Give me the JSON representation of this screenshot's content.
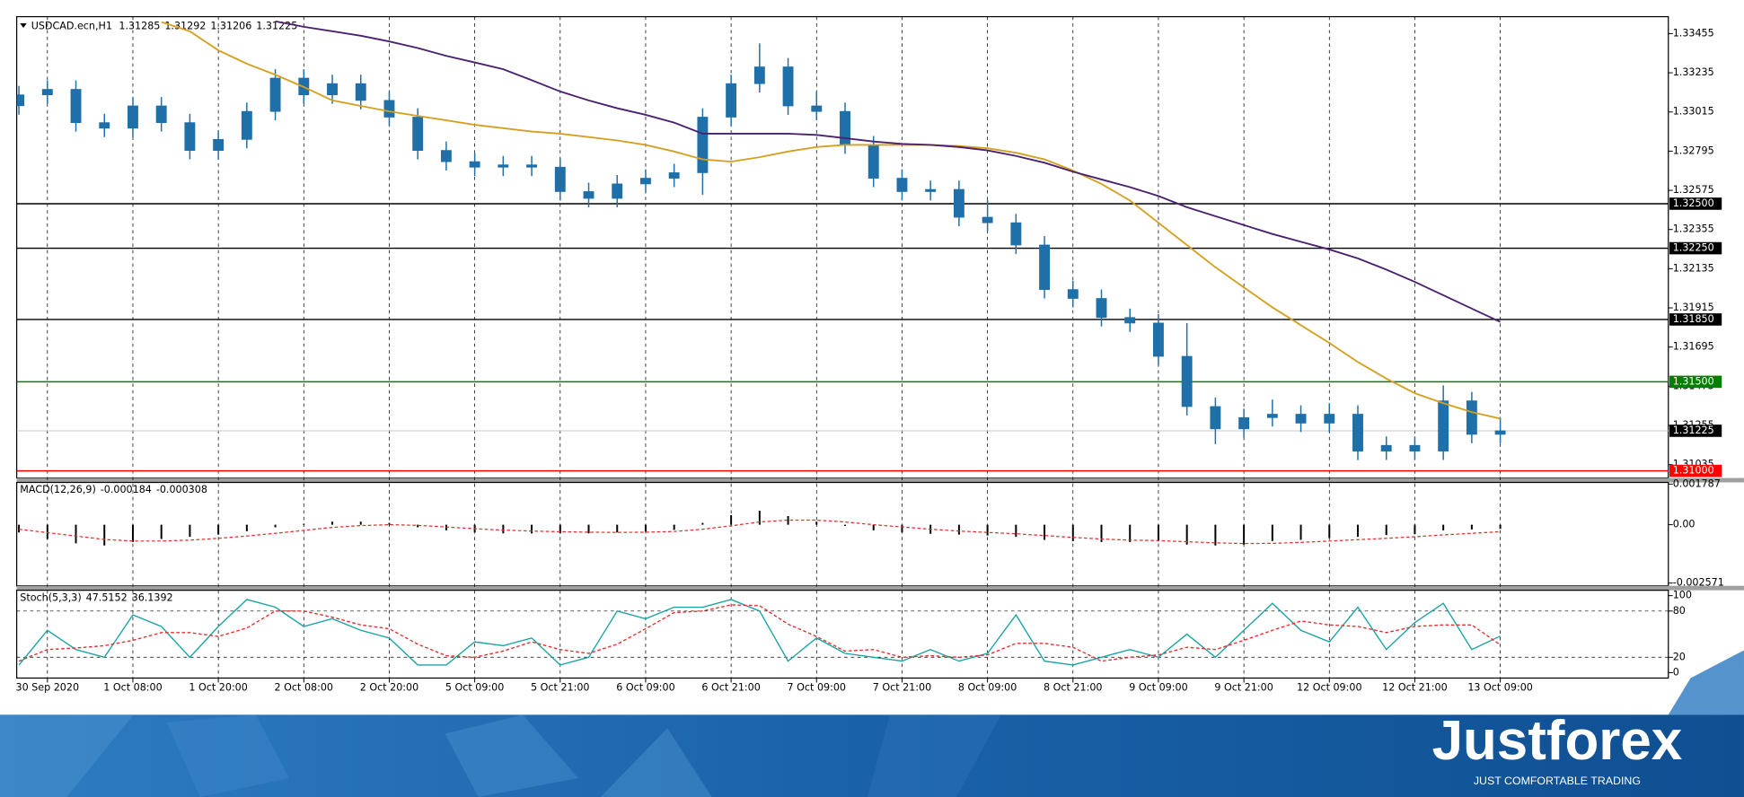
{
  "chart_data": [
    {
      "type": "candlestick",
      "symbol": "USDCAD.ecn,H1",
      "header_values": [
        1.31285,
        1.31292,
        1.31206,
        1.31225
      ],
      "x": [
        0,
        1,
        2,
        3,
        4,
        5,
        6,
        7,
        8,
        9,
        10,
        11,
        12,
        13,
        14,
        15,
        16,
        17,
        18,
        19,
        20,
        21,
        22,
        23,
        24,
        25,
        26,
        27,
        28,
        29,
        30,
        31,
        32,
        33,
        34,
        35,
        36,
        37,
        38,
        39,
        40,
        41,
        42,
        43,
        44,
        45,
        46,
        47,
        48,
        49,
        50,
        51,
        52
      ],
      "open": [
        1.3305,
        1.33111,
        1.33142,
        1.32955,
        1.32924,
        1.33049,
        1.32955,
        1.32799,
        1.32861,
        1.33018,
        1.33205,
        1.33111,
        1.33174,
        1.3308,
        1.32986,
        1.32799,
        1.32736,
        1.32705,
        1.32718,
        1.32705,
        1.32568,
        1.3253,
        1.32611,
        1.32643,
        1.32674,
        1.32986,
        1.33174,
        1.33268,
        1.33049,
        1.33018,
        1.3283,
        1.32643,
        1.32568,
        1.3258,
        1.32424,
        1.32393,
        1.32268,
        1.32018,
        1.31968,
        1.31861,
        1.3183,
        1.31643,
        1.31361,
        1.31236,
        1.31299,
        1.31318,
        1.31268,
        1.31318,
        1.31111,
        1.31143,
        1.31111,
        1.31393,
        1.31205
      ],
      "high": [
        1.33161,
        1.33192,
        1.33192,
        1.33005,
        1.33099,
        1.33099,
        1.33005,
        1.32911,
        1.33068,
        1.33255,
        1.33255,
        1.33224,
        1.33224,
        1.3313,
        1.33036,
        1.32849,
        1.32786,
        1.32768,
        1.32768,
        1.32755,
        1.32618,
        1.32661,
        1.32693,
        1.32724,
        1.33036,
        1.33224,
        1.334,
        1.33318,
        1.3313,
        1.33068,
        1.3288,
        1.32693,
        1.3263,
        1.3263,
        1.3252,
        1.32443,
        1.32318,
        1.32068,
        1.32018,
        1.31911,
        1.3188,
        1.3183,
        1.31411,
        1.31349,
        1.314,
        1.31368,
        1.3138,
        1.31368,
        1.31193,
        1.31193,
        1.3148,
        1.31443,
        1.313
      ],
      "low": [
        1.33,
        1.33061,
        1.32905,
        1.32874,
        1.32874,
        1.32905,
        1.32749,
        1.32749,
        1.32811,
        1.32968,
        1.33061,
        1.33061,
        1.3303,
        1.32936,
        1.32749,
        1.32686,
        1.32655,
        1.32655,
        1.32655,
        1.32518,
        1.3248,
        1.3248,
        1.32561,
        1.32593,
        1.3255,
        1.32936,
        1.33124,
        1.32999,
        1.32968,
        1.3278,
        1.32593,
        1.32518,
        1.32518,
        1.32374,
        1.32343,
        1.32218,
        1.31968,
        1.31918,
        1.31811,
        1.3178,
        1.31593,
        1.31311,
        1.3115,
        1.31186,
        1.31249,
        1.31218,
        1.31218,
        1.3106,
        1.31061,
        1.31061,
        1.31061,
        1.31155,
        1.31155
      ],
      "close": [
        1.33111,
        1.33142,
        1.32955,
        1.32924,
        1.33049,
        1.32955,
        1.32799,
        1.32861,
        1.33018,
        1.33205,
        1.33111,
        1.33174,
        1.3308,
        1.32986,
        1.32799,
        1.32736,
        1.32705,
        1.32718,
        1.32705,
        1.32568,
        1.3253,
        1.32611,
        1.32643,
        1.32674,
        1.32986,
        1.33174,
        1.33268,
        1.33049,
        1.33018,
        1.3283,
        1.32643,
        1.32568,
        1.3258,
        1.32424,
        1.32393,
        1.32268,
        1.32018,
        1.31968,
        1.31861,
        1.3183,
        1.31643,
        1.31361,
        1.31236,
        1.31299,
        1.31318,
        1.31268,
        1.31318,
        1.31111,
        1.31143,
        1.31111,
        1.31393,
        1.31205,
        1.31225
      ],
      "color": "#1f6fa8",
      "moving_averages": [
        {
          "color": "#d4a020",
          "values": [
            null,
            null,
            null,
            null,
            null,
            1.3352,
            1.33468,
            1.33361,
            1.33286,
            1.33224,
            1.33155,
            1.3308,
            1.33049,
            1.33018,
            1.32993,
            1.32968,
            1.32943,
            1.32924,
            1.32905,
            1.32893,
            1.32874,
            1.32855,
            1.3283,
            1.32793,
            1.32749,
            1.32736,
            1.32761,
            1.32793,
            1.32818,
            1.3283,
            1.3283,
            1.3283,
            1.3283,
            1.32824,
            1.32811,
            1.32786,
            1.32749,
            1.32686,
            1.32611,
            1.32518,
            1.32393,
            1.32268,
            1.32143,
            1.3203,
            1.31918,
            1.31818,
            1.31718,
            1.31611,
            1.31518,
            1.31436,
            1.3138,
            1.3133,
            1.31293
          ]
        },
        {
          "color": "#4a2070",
          "values": [
            null,
            null,
            null,
            null,
            null,
            null,
            null,
            null,
            null,
            1.33524,
            1.33493,
            1.33468,
            1.33443,
            1.33411,
            1.33374,
            1.3333,
            1.33293,
            1.33255,
            1.33193,
            1.3313,
            1.3308,
            1.33036,
            1.32999,
            1.32955,
            1.32893,
            1.32893,
            1.32893,
            1.32893,
            1.32886,
            1.32868,
            1.32849,
            1.32836,
            1.3283,
            1.32818,
            1.32799,
            1.32768,
            1.3273,
            1.3268,
            1.32636,
            1.32593,
            1.32543,
            1.3248,
            1.3243,
            1.3238,
            1.3233,
            1.32286,
            1.32243,
            1.32193,
            1.3213,
            1.32061,
            1.31986,
            1.31911,
            1.31836
          ]
        }
      ],
      "levels": {
        "values": [
          1.325,
          1.3225,
          1.3185,
          1.315,
          1.31225,
          1.31
        ],
        "value_labels": [
          "1.32500",
          "1.32250",
          "1.31850",
          "1.31500",
          "1.31225",
          "1.31000"
        ],
        "colors": [
          "#000000",
          "#000000",
          "#000000",
          "#008000",
          "#c8c8c8",
          "#ff0000"
        ],
        "label_colors": [
          "#000000",
          "#000000",
          "#000000",
          "#008000",
          "#000000",
          "#ff0000"
        ]
      },
      "xlim": [
        0,
        57.9
      ],
      "xticks": [
        {
          "value": 1,
          "label": "30 Sep 2020"
        },
        {
          "value": 4,
          "label": "1 Oct 08:00"
        },
        {
          "value": 7,
          "label": "1 Oct 20:00"
        },
        {
          "value": 10,
          "label": "2 Oct 08:00"
        },
        {
          "value": 13,
          "label": "2 Oct 20:00"
        },
        {
          "value": 16,
          "label": "5 Oct 09:00"
        },
        {
          "value": 19,
          "label": "5 Oct 21:00"
        },
        {
          "value": 22,
          "label": "6 Oct 09:00"
        },
        {
          "value": 25,
          "label": "6 Oct 21:00"
        },
        {
          "value": 28,
          "label": "7 Oct 09:00"
        },
        {
          "value": 31,
          "label": "7 Oct 21:00"
        },
        {
          "value": 34,
          "label": "8 Oct 09:00"
        },
        {
          "value": 37,
          "label": "8 Oct 21:00"
        },
        {
          "value": 40,
          "label": "9 Oct 09:00"
        },
        {
          "value": 43,
          "label": "9 Oct 21:00"
        },
        {
          "value": 46,
          "label": "12 Oct 09:00"
        },
        {
          "value": 49,
          "label": "12 Oct 21:00"
        },
        {
          "value": 52,
          "label": "13 Oct 09:00"
        }
      ],
      "ylim": [
        1.3096,
        1.3355
      ],
      "yticks": [
        1.33455,
        1.33235,
        1.33015,
        1.32795,
        1.32575,
        1.32355,
        1.32135,
        1.31915,
        1.31695,
        1.31475,
        1.31255,
        1.31035
      ],
      "grid": "x"
    },
    {
      "type": "bar",
      "title": "MACD(12,26,9)",
      "header_values": [
        -0.000184,
        -0.000308
      ],
      "values": [
        -0.000343,
        -0.000629,
        -0.000819,
        -0.000914,
        -0.000762,
        -0.000629,
        -0.000533,
        -0.000438,
        -0.000286,
        -0.000114,
        3.8e-05,
        0.000133,
        0.000133,
        7.6e-05,
        -0.000114,
        -0.000248,
        -0.000343,
        -0.000381,
        -0.000381,
        -0.000381,
        -0.000381,
        -0.000343,
        -0.000305,
        -0.000229,
        7.6e-05,
        0.000419,
        0.00061,
        0.000381,
        0.000133,
        -5.7e-05,
        -0.000248,
        -0.000343,
        -0.0004,
        -0.000438,
        -0.000476,
        -0.000533,
        -0.000667,
        -0.000724,
        -0.000762,
        -0.000762,
        -0.000724,
        -0.000876,
        -0.000914,
        -0.000876,
        -0.000724,
        -0.000667,
        -0.00059,
        -0.000533,
        -0.000457,
        -0.000419,
        -0.00025,
        -0.00021,
        -0.000184
      ],
      "color": "#000000",
      "signal": {
        "color": "#e03030",
        "values": [
          -0.0002,
          -0.00035,
          -0.0005,
          -0.00065,
          -0.00072,
          -0.00072,
          -0.00068,
          -0.0006,
          -0.0005,
          -0.00038,
          -0.00025,
          -0.00012,
          -4e-05,
          0,
          -3e-05,
          -0.0001,
          -0.00018,
          -0.00024,
          -0.00028,
          -0.00031,
          -0.00033,
          -0.00034,
          -0.00033,
          -0.0003,
          -0.0002,
          -5e-05,
          0.00012,
          0.0002,
          0.0002,
          0.00012,
          0,
          -0.0001,
          -0.0002,
          -0.00028,
          -0.00034,
          -0.0004,
          -0.00048,
          -0.00056,
          -0.00063,
          -0.00068,
          -0.0007,
          -0.00075,
          -0.0008,
          -0.00083,
          -0.00082,
          -0.00078,
          -0.00072,
          -0.00066,
          -0.0006,
          -0.00053,
          -0.00045,
          -0.00038,
          -0.000308
        ]
      },
      "ylim": [
        -0.00269,
        0.00186
      ],
      "yticks": [
        0.001787,
        {
          "value": 0,
          "label": "0.00"
        },
        -0.002571
      ]
    },
    {
      "type": "line",
      "title": "Stoch(5,3,3)",
      "header_values": [
        47.5152,
        36.1392
      ],
      "series": [
        {
          "color": "#1aa3a3",
          "dashed": false,
          "values": [
            10,
            55,
            30,
            20,
            75,
            60,
            20,
            60,
            95,
            85,
            60,
            70,
            55,
            45,
            10,
            10,
            40,
            35,
            45,
            10,
            20,
            80,
            70,
            85,
            85,
            95,
            80,
            15,
            45,
            25,
            20,
            15,
            30,
            15,
            25,
            75,
            15,
            10,
            20,
            30,
            20,
            50,
            20,
            55,
            90,
            55,
            40,
            85,
            30,
            65,
            90,
            30,
            47.5152
          ]
        },
        {
          "color": "#e03030",
          "dashed": true,
          "values": [
            15,
            30,
            32,
            35,
            42,
            52,
            52,
            47,
            58,
            80,
            80,
            72,
            62,
            57,
            37,
            22,
            20,
            28,
            40,
            30,
            25,
            37,
            57,
            78,
            80,
            88,
            87,
            63,
            47,
            28,
            30,
            20,
            22,
            20,
            23,
            38,
            38,
            33,
            15,
            20,
            23,
            33,
            30,
            42,
            55,
            67,
            62,
            60,
            52,
            60,
            62,
            62,
            36.1392
          ]
        }
      ],
      "levels": [
        20,
        80
      ],
      "ylim": [
        -7,
        107
      ],
      "yticks": [
        0,
        20,
        80,
        100
      ]
    }
  ],
  "brand": {
    "name": "Justforex",
    "tagline": "JUST COMFORTABLE TRADING"
  }
}
